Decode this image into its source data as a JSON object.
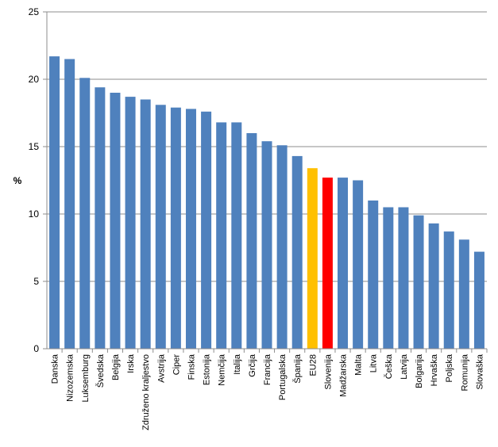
{
  "chart_data": {
    "type": "bar",
    "title": "",
    "xlabel": "",
    "ylabel": "%",
    "ylim": [
      0,
      25
    ],
    "yticks": [
      0,
      5,
      10,
      15,
      20,
      25
    ],
    "grid": true,
    "categories": [
      "Danska",
      "Nizozemska",
      "Luksemburg",
      "Švedska",
      "Belgija",
      "Irska",
      "Združeno kraljestvo",
      "Avstrija",
      "Ciper",
      "Finska",
      "Estonija",
      "Nemčija",
      "Italija",
      "Grčija",
      "Francija",
      "Portugalska",
      "Španija",
      "EU28",
      "Slovenija",
      "Madžarska",
      "Malta",
      "Litva",
      "Češka",
      "Latvija",
      "Bolgarija",
      "Hrvaška",
      "Poljska",
      "Romunija",
      "Slovaška"
    ],
    "values": [
      21.7,
      21.5,
      20.1,
      19.4,
      19.0,
      18.7,
      18.5,
      18.1,
      17.9,
      17.8,
      17.6,
      16.8,
      16.8,
      16.0,
      15.4,
      15.1,
      14.3,
      13.4,
      12.7,
      12.7,
      12.5,
      11.0,
      10.5,
      10.5,
      9.9,
      9.3,
      8.7,
      8.1,
      7.2
    ],
    "colors": {
      "default": "#4f81bd",
      "EU28": "#ffc000",
      "Slovenija": "#ff0000",
      "grid": "#8c8c8c",
      "axis": "#8c8c8c"
    }
  }
}
